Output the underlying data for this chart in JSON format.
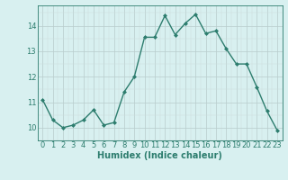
{
  "x": [
    0,
    1,
    2,
    3,
    4,
    5,
    6,
    7,
    8,
    9,
    10,
    11,
    12,
    13,
    14,
    15,
    16,
    17,
    18,
    19,
    20,
    21,
    22,
    23
  ],
  "y": [
    11.1,
    10.3,
    10.0,
    10.1,
    10.3,
    10.7,
    10.1,
    10.2,
    11.4,
    12.0,
    13.55,
    13.55,
    14.4,
    13.65,
    14.1,
    14.45,
    13.7,
    13.8,
    13.1,
    12.5,
    12.5,
    11.6,
    10.65,
    9.9
  ],
  "line_color": "#2d7d6e",
  "marker": "D",
  "marker_size": 2,
  "bg_color": "#d8f0f0",
  "grid_color_major": "#b8cccc",
  "grid_color_minor": "#ccdcdc",
  "xlabel": "Humidex (Indice chaleur)",
  "ylim": [
    9.5,
    14.8
  ],
  "xlim": [
    -0.5,
    23.5
  ],
  "yticks": [
    10,
    11,
    12,
    13,
    14
  ],
  "xticks": [
    0,
    1,
    2,
    3,
    4,
    5,
    6,
    7,
    8,
    9,
    10,
    11,
    12,
    13,
    14,
    15,
    16,
    17,
    18,
    19,
    20,
    21,
    22,
    23
  ],
  "xlabel_fontsize": 7,
  "tick_fontsize": 6,
  "line_width": 1.0
}
